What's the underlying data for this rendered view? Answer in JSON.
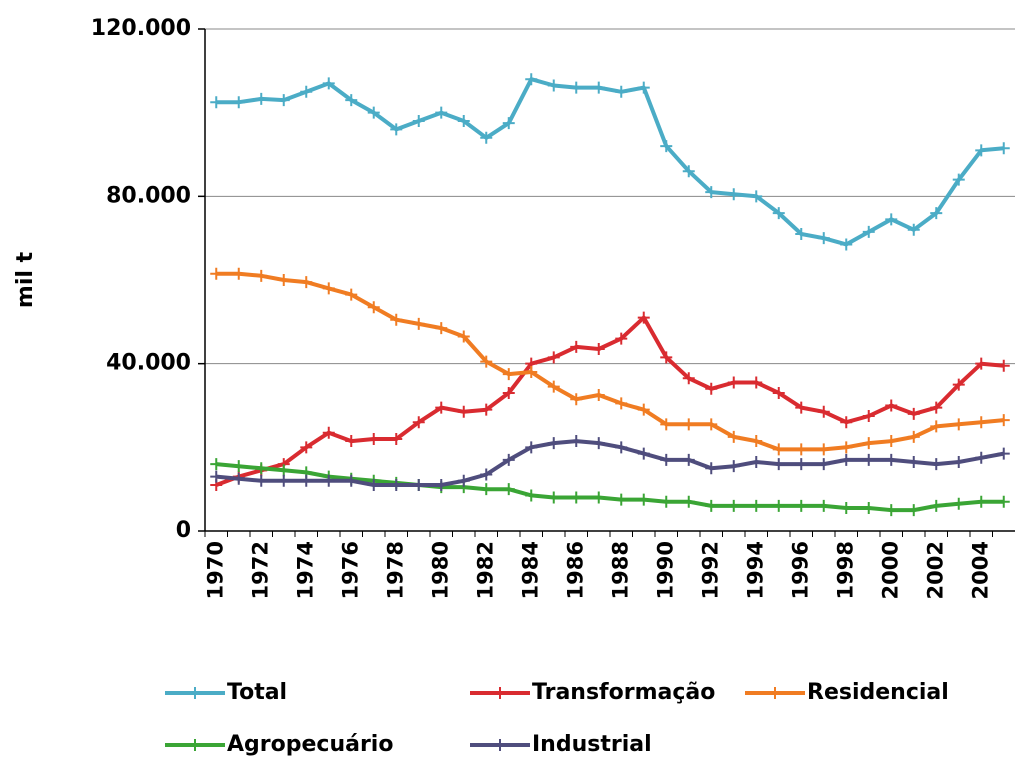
{
  "chart_data": {
    "type": "line",
    "y_label": "mil t",
    "categories": [
      "1970",
      null,
      "1972",
      null,
      "1974",
      null,
      "1976",
      null,
      "1978",
      null,
      "1980",
      null,
      "1982",
      null,
      "1984",
      null,
      "1986",
      null,
      "1988",
      null,
      "1990",
      null,
      "1992",
      null,
      "1994",
      null,
      "1996",
      null,
      "1998",
      null,
      "2000",
      null,
      "2002",
      null,
      "2004",
      null
    ],
    "series": [
      {
        "name": "Total",
        "color": "#4bacc6",
        "values": [
          102500,
          102500,
          103300,
          103000,
          105000,
          107000,
          103000,
          100000,
          96000,
          98000,
          100000,
          98000,
          94000,
          97500,
          108000,
          106500,
          106000,
          106000,
          105000,
          106000,
          92000,
          86000,
          81000,
          80500,
          80000,
          76000,
          71000,
          70000,
          68500,
          71500,
          74500,
          72000,
          76000,
          84000,
          91000,
          91500
        ]
      },
      {
        "name": "Transformação",
        "color": "#d92b30",
        "values": [
          11000,
          13000,
          14500,
          16000,
          20000,
          23500,
          21500,
          22000,
          22000,
          26000,
          29500,
          28500,
          29000,
          33000,
          40000,
          41500,
          44000,
          43500,
          46000,
          51000,
          41500,
          36500,
          34000,
          35500,
          35500,
          33000,
          29500,
          28500,
          26000,
          27500,
          30000,
          28000,
          29500,
          35000,
          40000,
          39500
        ]
      },
      {
        "name": "Residencial",
        "color": "#f07c22",
        "values": [
          61500,
          61500,
          61000,
          60000,
          59500,
          58000,
          56500,
          53500,
          50500,
          49500,
          48500,
          46500,
          40500,
          37500,
          38000,
          34500,
          31500,
          32500,
          30500,
          29000,
          25500,
          25500,
          25500,
          22500,
          21500,
          19500,
          19500,
          19500,
          20000,
          21000,
          21500,
          22500,
          25000,
          25500,
          26000,
          26500
        ]
      },
      {
        "name": "Agropecuário",
        "color": "#3aa535",
        "values": [
          16000,
          15500,
          15000,
          14500,
          14000,
          13000,
          12500,
          12000,
          11500,
          11000,
          10500,
          10500,
          10000,
          10000,
          8500,
          8000,
          8000,
          8000,
          7500,
          7500,
          7000,
          7000,
          6000,
          6000,
          6000,
          6000,
          6000,
          6000,
          5500,
          5500,
          5000,
          5000,
          6000,
          6500,
          7000,
          7000
        ]
      },
      {
        "name": "Industrial",
        "color": "#4f4d7d",
        "values": [
          13000,
          12500,
          12000,
          12000,
          12000,
          12000,
          12000,
          11000,
          11000,
          11000,
          11000,
          12000,
          13500,
          17000,
          20000,
          21000,
          21500,
          21000,
          20000,
          18500,
          17000,
          17000,
          15000,
          15500,
          16500,
          16000,
          16000,
          16000,
          17000,
          17000,
          17000,
          16500,
          16000,
          16500,
          17500,
          18500
        ]
      }
    ],
    "ylim": [
      0,
      120000
    ],
    "yticks": [
      0,
      {
        "value": 40000,
        "label": "40.000"
      },
      {
        "value": 80000,
        "label": "80.000"
      },
      {
        "value": 120000,
        "label": "120.000"
      }
    ],
    "grid": true
  }
}
